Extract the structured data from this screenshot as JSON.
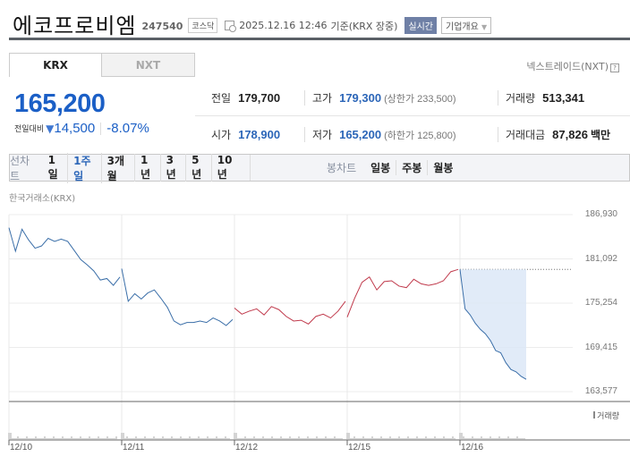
{
  "header": {
    "company_name": "에코프로비엠",
    "stock_code": "247540",
    "market": "코스닥",
    "datetime": "2025.12.16 12:46",
    "basis": "기준(KRX 장중)",
    "realtime_badge": "실시간",
    "overview_button": "기업개요"
  },
  "exchange_tabs": [
    {
      "label": "KRX",
      "active": true
    },
    {
      "label": "NXT",
      "active": false
    }
  ],
  "nxt_link": "넥스트레이드(NXT)",
  "price": {
    "current": "165,200",
    "change_label": "전일대비",
    "change_value": "14,500",
    "change_pct": "-8.07%",
    "direction": "down"
  },
  "stats": {
    "prev_close_label": "전일",
    "prev_close": "179,700",
    "high_label": "고가",
    "high": "179,300",
    "upper_limit_label": "(상한가",
    "upper_limit": "233,500)",
    "volume_label": "거래량",
    "volume": "513,341",
    "open_label": "시가",
    "open": "178,900",
    "low_label": "저가",
    "low": "165,200",
    "lower_limit_label": "(하한가",
    "lower_limit": "125,800)",
    "amount_label": "거래대금",
    "amount": "87,826",
    "amount_unit": "백만"
  },
  "period_bar": {
    "line_label": "선차트",
    "line_periods": [
      "1일",
      "1주일",
      "3개월",
      "1년",
      "3년",
      "5년",
      "10년"
    ],
    "line_active": "1주일",
    "candle_label": "봉차트",
    "candle_periods": [
      "일봉",
      "주봉",
      "월봉"
    ]
  },
  "chart": {
    "exchange_label": "한국거래소(KRX)",
    "volume_legend": "거래량"
  },
  "colors": {
    "up": "#c0394b",
    "down": "#3a6ea8",
    "price_blue": "#1b5fc6",
    "fill": "#dce8f7"
  },
  "chart_data": {
    "type": "line",
    "title": "에코프로비엠 1주일 선차트",
    "x_ticks": [
      "12/10",
      "12/11",
      "12/12",
      "12/15",
      "12/16"
    ],
    "y_ticks": [
      "186,930",
      "181,092",
      "175,254",
      "169,415",
      "163,577"
    ],
    "ylim": [
      163577,
      186930
    ],
    "prev_close_reference": 179700,
    "series": [
      {
        "name": "12/10",
        "color": "down",
        "values": [
          185200,
          182100,
          185000,
          183600,
          182500,
          182800,
          183800,
          183400,
          183700,
          183400,
          182200,
          181000,
          180300,
          179500,
          178300,
          178500,
          177600,
          178700
        ]
      },
      {
        "name": "12/11",
        "color": "down",
        "values": [
          179800,
          175500,
          176500,
          175800,
          176600,
          177000,
          175900,
          174700,
          172900,
          172400,
          172700,
          172700,
          172900,
          172700,
          173300,
          172900,
          172300,
          173100
        ]
      },
      {
        "name": "12/12",
        "color": "up",
        "values": [
          174600,
          173800,
          174200,
          174500,
          173700,
          174800,
          174400,
          173500,
          172900,
          173000,
          172500,
          173500,
          173800,
          173300,
          174200,
          175500
        ]
      },
      {
        "name": "12/15",
        "color": "up",
        "values": [
          173400,
          175900,
          178000,
          178700,
          177000,
          178100,
          178200,
          177500,
          177300,
          178400,
          177800,
          177600,
          177800,
          178200,
          179400,
          179700
        ]
      },
      {
        "name": "12/16",
        "color": "down",
        "values": [
          179700,
          174500,
          173700,
          172600,
          171800,
          171200,
          170300,
          169000,
          168700,
          167400,
          166500,
          166200,
          165600,
          165200
        ]
      }
    ],
    "grid": true,
    "legend": "none"
  }
}
